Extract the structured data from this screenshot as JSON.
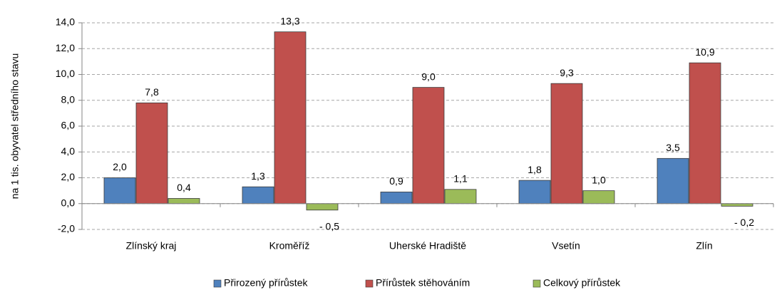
{
  "chart_data": {
    "type": "bar",
    "y_label": "na 1 tis. obyvatel středního stavu",
    "categories": [
      "Zlínský kraj",
      "Kroměříž",
      "Uherské Hradiště",
      "Vsetín",
      "Zlín"
    ],
    "series": [
      {
        "name": "Přirozený přírůstek",
        "color": "#4f81bd",
        "values": [
          2.0,
          1.3,
          0.9,
          1.8,
          3.5
        ],
        "value_labels": [
          "2,0",
          "1,3",
          "0,9",
          "1,8",
          "3,5"
        ]
      },
      {
        "name": "Přírůstek stěhováním",
        "color": "#c0504d",
        "values": [
          7.8,
          13.3,
          9.0,
          9.3,
          10.9
        ],
        "value_labels": [
          "7,8",
          "13,3",
          "9,0",
          "9,3",
          "10,9"
        ]
      },
      {
        "name": "Celkový přírůstek",
        "color": "#9bbb59",
        "values": [
          0.4,
          -0.5,
          1.1,
          1.0,
          -0.2
        ],
        "value_labels": [
          "0,4",
          "- 0,5",
          "1,1",
          "1,0",
          "- 0,2"
        ]
      }
    ],
    "ylim": [
      -2,
      14
    ],
    "yticks": [
      {
        "value": -2,
        "label": "-2,0"
      },
      {
        "value": 0,
        "label": "0,0"
      },
      {
        "value": 2,
        "label": "2,0"
      },
      {
        "value": 4,
        "label": "4,0"
      },
      {
        "value": 6,
        "label": "6,0"
      },
      {
        "value": 8,
        "label": "8,0"
      },
      {
        "value": 10,
        "label": "10,0"
      },
      {
        "value": 12,
        "label": "12,0"
      },
      {
        "value": 14,
        "label": "14,0"
      }
    ],
    "grid": true,
    "legend": "bottom"
  }
}
